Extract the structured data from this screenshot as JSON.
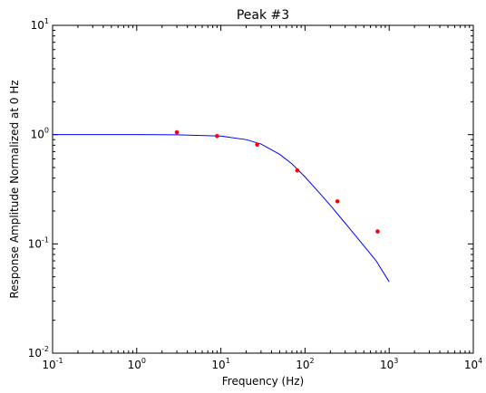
{
  "chart_data": {
    "type": "scatter",
    "title": "Peak #3",
    "xlabel": "Frequency (Hz)",
    "ylabel": "Response Amplitude Normalized at 0 Hz",
    "x_scale": "log",
    "y_scale": "log",
    "xlim": [
      0.1,
      10000
    ],
    "ylim": [
      0.01,
      10
    ],
    "grid": false,
    "x_ticks": [
      {
        "base": "10",
        "exp": "-1",
        "value": 0.1
      },
      {
        "base": "10",
        "exp": "0",
        "value": 1
      },
      {
        "base": "10",
        "exp": "1",
        "value": 10
      },
      {
        "base": "10",
        "exp": "2",
        "value": 100
      },
      {
        "base": "10",
        "exp": "3",
        "value": 1000
      },
      {
        "base": "10",
        "exp": "4",
        "value": 10000
      }
    ],
    "y_ticks": [
      {
        "base": "10",
        "exp": "-2",
        "value": 0.01
      },
      {
        "base": "10",
        "exp": "-1",
        "value": 0.1
      },
      {
        "base": "10",
        "exp": "0",
        "value": 1
      },
      {
        "base": "10",
        "exp": "1",
        "value": 10
      }
    ],
    "series": [
      {
        "kind": "line",
        "color": "#0000ff",
        "x": [
          0.1,
          0.3,
          1,
          3,
          10,
          20,
          30,
          50,
          70,
          100,
          150,
          200,
          300,
          500,
          700,
          1000
        ],
        "y": [
          1.0,
          1.0,
          1.0,
          0.997,
          0.97,
          0.9,
          0.82,
          0.66,
          0.54,
          0.41,
          0.29,
          0.225,
          0.155,
          0.096,
          0.07,
          0.045
        ]
      },
      {
        "kind": "scatter",
        "color": "#ff0000",
        "x": [
          3,
          9,
          27,
          81,
          243,
          729
        ],
        "y": [
          1.05,
          0.97,
          0.81,
          0.47,
          0.245,
          0.13
        ]
      }
    ]
  }
}
